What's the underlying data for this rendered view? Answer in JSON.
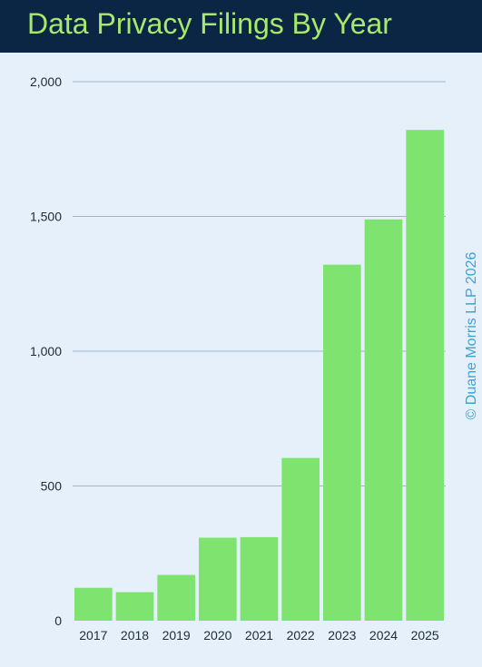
{
  "header": {
    "title": "Data Privacy Filings By Year"
  },
  "copyright": "© Duane Morris LLP 2026",
  "colors": {
    "header_bg": "#0b2545",
    "title": "#a8e86b",
    "bar": "#7ee46f",
    "background": "#e6f0fa",
    "grid": "#9db8cc",
    "copyright": "#3aa3d8"
  },
  "chart_data": {
    "type": "bar",
    "title": "Data Privacy Filings By Year",
    "categories": [
      "2017",
      "2018",
      "2019",
      "2020",
      "2021",
      "2022",
      "2023",
      "2024",
      "2025"
    ],
    "values": [
      122,
      106,
      170,
      308,
      310,
      604,
      1321,
      1489,
      1821
    ],
    "ylim": [
      0,
      2000
    ],
    "yticks": [
      0,
      500,
      1000,
      1500,
      2000
    ],
    "ytick_labels": [
      "0",
      "500",
      "1,000",
      "1,500",
      "2,000"
    ],
    "grid": true,
    "xlabel": "",
    "ylabel": ""
  }
}
